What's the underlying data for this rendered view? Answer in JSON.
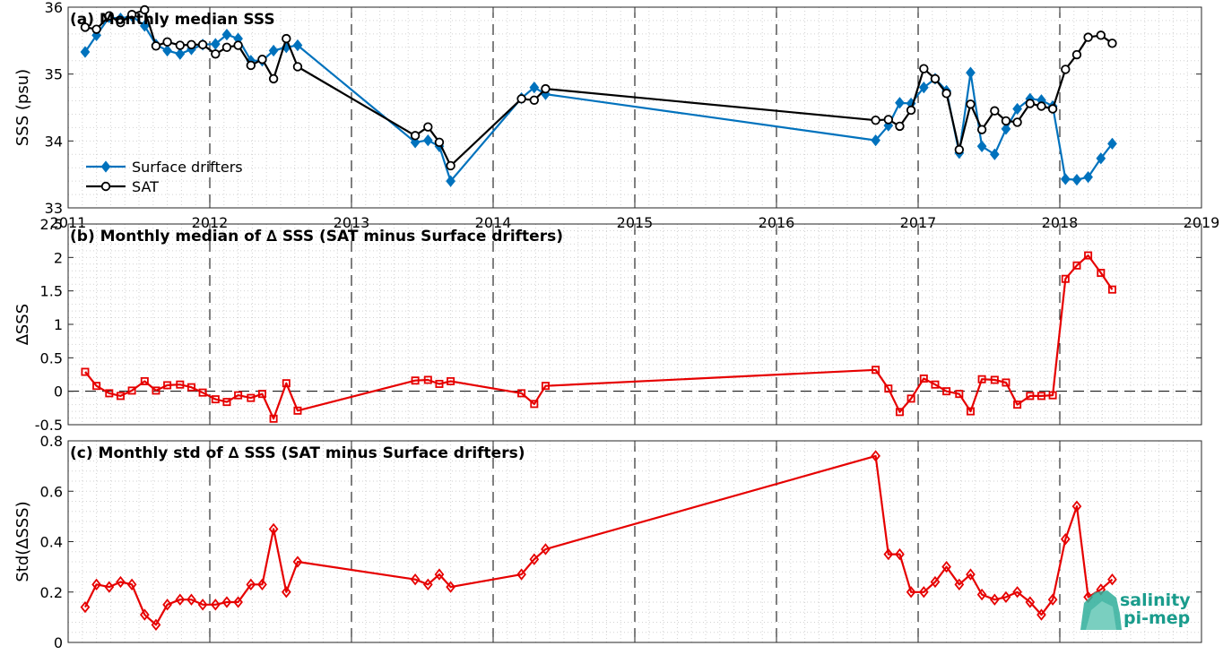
{
  "colors": {
    "drifters": "#0072BD",
    "sat": "#000000",
    "delta": "#e60000",
    "logo": "#1a9c8c"
  },
  "logo": {
    "line1": "salinity",
    "line2": "pi-mep"
  },
  "chart_data": [
    {
      "type": "line",
      "title": "(a) Monthly median SSS",
      "ylabel": "SSS (psu)",
      "xlim": [
        2011,
        2019
      ],
      "ylim": [
        33,
        36
      ],
      "yticks": [
        33,
        34,
        35,
        36
      ],
      "xticks": [
        "2011",
        "2012",
        "2013",
        "2014",
        "2015",
        "2016",
        "2017",
        "2018",
        "2019"
      ],
      "grid": true,
      "legend": {
        "location": "left",
        "entries": [
          "Surface drifters",
          "SAT"
        ]
      },
      "series": [
        {
          "name": "Surface drifters",
          "marker": "diamond",
          "x": [
            2011.12,
            2011.2,
            2011.29,
            2011.37,
            2011.45,
            2011.54,
            2011.62,
            2011.7,
            2011.79,
            2011.87,
            2011.95,
            2012.04,
            2012.12,
            2012.2,
            2012.29,
            2012.37,
            2012.45,
            2012.54,
            2012.62,
            2013.45,
            2013.54,
            2013.62,
            2013.7,
            2014.2,
            2014.29,
            2014.37,
            2016.7,
            2016.79,
            2016.87,
            2016.95,
            2017.04,
            2017.12,
            2017.2,
            2017.29,
            2017.37,
            2017.45,
            2017.54,
            2017.62,
            2017.7,
            2017.79,
            2017.87,
            2017.95,
            2018.04,
            2018.12,
            2018.2,
            2018.29,
            2018.37
          ],
          "values": [
            35.33,
            35.58,
            35.85,
            35.83,
            35.87,
            35.72,
            35.44,
            35.35,
            35.3,
            35.37,
            35.44,
            35.45,
            35.59,
            35.53,
            35.2,
            35.2,
            35.35,
            35.4,
            35.43,
            33.98,
            34.01,
            33.92,
            33.4,
            34.64,
            34.8,
            34.7,
            34.01,
            34.23,
            34.57,
            34.56,
            34.8,
            34.93,
            34.75,
            33.82,
            35.02,
            33.92,
            33.8,
            34.18,
            34.48,
            34.63,
            34.61,
            34.52,
            33.43,
            33.42,
            33.46,
            33.74,
            33.96
          ]
        },
        {
          "name": "SAT",
          "marker": "circle",
          "x": [
            2011.12,
            2011.2,
            2011.29,
            2011.37,
            2011.45,
            2011.54,
            2011.62,
            2011.7,
            2011.79,
            2011.87,
            2011.95,
            2012.04,
            2012.12,
            2012.2,
            2012.29,
            2012.37,
            2012.45,
            2012.54,
            2012.62,
            2013.45,
            2013.54,
            2013.62,
            2013.7,
            2014.2,
            2014.29,
            2014.37,
            2016.7,
            2016.79,
            2016.87,
            2016.95,
            2017.04,
            2017.12,
            2017.2,
            2017.29,
            2017.37,
            2017.45,
            2017.54,
            2017.62,
            2017.7,
            2017.79,
            2017.87,
            2017.95,
            2018.04,
            2018.12,
            2018.2,
            2018.29,
            2018.37
          ],
          "values": [
            35.7,
            35.67,
            35.87,
            35.77,
            35.89,
            35.96,
            35.42,
            35.48,
            35.43,
            35.44,
            35.44,
            35.3,
            35.4,
            35.43,
            35.13,
            35.22,
            34.93,
            35.53,
            35.11,
            34.08,
            34.21,
            33.98,
            33.63,
            34.63,
            34.61,
            34.78,
            34.31,
            34.32,
            34.22,
            34.46,
            35.08,
            34.93,
            34.71,
            33.87,
            34.55,
            34.17,
            34.45,
            34.3,
            34.28,
            34.56,
            34.52,
            34.48,
            35.07,
            35.29,
            35.55,
            35.58,
            35.46
          ]
        }
      ]
    },
    {
      "type": "line",
      "title": "(b) Monthly median of ∆ SSS (SAT minus Surface drifters)",
      "ylabel": "∆SSS",
      "xlim": [
        2011,
        2019
      ],
      "ylim": [
        -0.5,
        2.5
      ],
      "yticks": [
        "-0.5",
        "0",
        "0.5",
        "1",
        "1.5",
        "2",
        "2.5"
      ],
      "grid": true,
      "reference_line": 0,
      "series": [
        {
          "marker": "square",
          "x": [
            2011.12,
            2011.2,
            2011.29,
            2011.37,
            2011.45,
            2011.54,
            2011.62,
            2011.7,
            2011.79,
            2011.87,
            2011.95,
            2012.04,
            2012.12,
            2012.2,
            2012.29,
            2012.37,
            2012.45,
            2012.54,
            2012.62,
            2013.45,
            2013.54,
            2013.62,
            2013.7,
            2014.2,
            2014.29,
            2014.37,
            2016.7,
            2016.79,
            2016.87,
            2016.95,
            2017.04,
            2017.12,
            2017.2,
            2017.29,
            2017.37,
            2017.45,
            2017.54,
            2017.62,
            2017.7,
            2017.79,
            2017.87,
            2017.95,
            2018.04,
            2018.12,
            2018.2,
            2018.29,
            2018.37
          ],
          "values": [
            0.29,
            0.08,
            -0.03,
            -0.07,
            0.01,
            0.15,
            0.01,
            0.09,
            0.1,
            0.06,
            -0.02,
            -0.12,
            -0.16,
            -0.06,
            -0.1,
            -0.04,
            -0.41,
            0.12,
            -0.29,
            0.16,
            0.17,
            0.11,
            0.15,
            -0.03,
            -0.19,
            0.08,
            0.32,
            0.04,
            -0.31,
            -0.11,
            0.19,
            0.1,
            0.0,
            -0.04,
            -0.3,
            0.18,
            0.17,
            0.13,
            -0.2,
            -0.07,
            -0.07,
            -0.06,
            1.68,
            1.88,
            2.03,
            1.77,
            1.52
          ]
        }
      ]
    },
    {
      "type": "line",
      "title": "(c) Monthly std of ∆ SSS (SAT minus Surface drifters)",
      "ylabel": "Std(∆SSS)",
      "xlim": [
        2011,
        2019
      ],
      "ylim": [
        0,
        0.8
      ],
      "yticks": [
        "0",
        "0.2",
        "0.4",
        "0.6",
        "0.8"
      ],
      "grid": true,
      "series": [
        {
          "marker": "diamond",
          "x": [
            2011.12,
            2011.2,
            2011.29,
            2011.37,
            2011.45,
            2011.54,
            2011.62,
            2011.7,
            2011.79,
            2011.87,
            2011.95,
            2012.04,
            2012.12,
            2012.2,
            2012.29,
            2012.37,
            2012.45,
            2012.54,
            2012.62,
            2013.45,
            2013.54,
            2013.62,
            2013.7,
            2014.2,
            2014.29,
            2014.37,
            2016.7,
            2016.79,
            2016.87,
            2016.95,
            2017.04,
            2017.12,
            2017.2,
            2017.29,
            2017.37,
            2017.45,
            2017.54,
            2017.62,
            2017.7,
            2017.79,
            2017.87,
            2017.95,
            2018.04,
            2018.12,
            2018.2,
            2018.29,
            2018.37
          ],
          "values": [
            0.14,
            0.23,
            0.22,
            0.24,
            0.23,
            0.11,
            0.07,
            0.15,
            0.17,
            0.17,
            0.15,
            0.15,
            0.16,
            0.16,
            0.23,
            0.23,
            0.45,
            0.2,
            0.32,
            0.25,
            0.23,
            0.27,
            0.22,
            0.27,
            0.33,
            0.37,
            0.74,
            0.35,
            0.35,
            0.2,
            0.2,
            0.24,
            0.3,
            0.23,
            0.27,
            0.19,
            0.17,
            0.18,
            0.2,
            0.16,
            0.11,
            0.17,
            0.41,
            0.54,
            0.18,
            0.21,
            0.25
          ]
        }
      ]
    }
  ]
}
